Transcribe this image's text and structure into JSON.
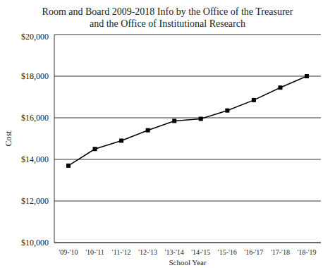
{
  "chart_data": {
    "type": "line",
    "title": "Room and Board 2009-2018 Info by the Office of the Treasurer and the Office of Institutional Research",
    "x_label": "School Year",
    "y_label": "Cost",
    "categories": [
      "'09-'10",
      "'10-'11",
      "'11-'12",
      "'12-'13",
      "'13-'14",
      "'14-'15",
      "'15-'16",
      "'16-'17",
      "'17-'18",
      "'18-'19"
    ],
    "values": [
      13700,
      14500,
      14900,
      15400,
      15850,
      15950,
      16350,
      16850,
      17450,
      18000
    ],
    "color": "#000000",
    "marker": "square",
    "line_style": "solid",
    "ylim": [
      10000,
      20000
    ],
    "yticks": [
      {
        "value": 10000,
        "label": "$10,000"
      },
      {
        "value": 12000,
        "label": "$12,000"
      },
      {
        "value": 14000,
        "label": "$14,000"
      },
      {
        "value": 16000,
        "label": "$16,000"
      },
      {
        "value": 18000,
        "label": "$18,000"
      },
      {
        "value": 20000,
        "label": "$20,000"
      }
    ],
    "grid": true
  }
}
